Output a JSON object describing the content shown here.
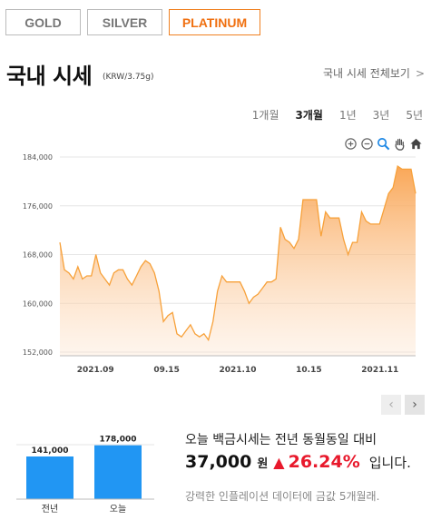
{
  "tabs": [
    {
      "label": "GOLD",
      "active": false
    },
    {
      "label": "SILVER",
      "active": false
    },
    {
      "label": "PLATINUM",
      "active": true
    }
  ],
  "header": {
    "title": "국내 시세",
    "unit": "(KRW/3.75g)",
    "view_all": "국내 시세 전체보기",
    "view_all_chevron": ">"
  },
  "periods": [
    {
      "label": "1개월",
      "active": false
    },
    {
      "label": "3개월",
      "active": true
    },
    {
      "label": "1년",
      "active": false
    },
    {
      "label": "3년",
      "active": false
    },
    {
      "label": "5년",
      "active": false
    }
  ],
  "toolbar": [
    "zoom-in-icon",
    "zoom-out-icon",
    "magnifier-icon",
    "hand-pan-icon",
    "home-icon"
  ],
  "pager": {
    "prev": "‹",
    "next": "›"
  },
  "colors": {
    "accent": "#f08020",
    "line": "#f7a13a",
    "fill_top": "#f9a24e",
    "bar": "#2196f3",
    "up": "#e8192c"
  },
  "chart_data": {
    "type": "area",
    "title": "",
    "xlabel": "",
    "ylabel": "",
    "ylim": [
      150000,
      186000
    ],
    "yticks": [
      "184,000",
      "176,000",
      "168,000",
      "160,000",
      "152,000"
    ],
    "ytick_values": [
      184000,
      176000,
      168000,
      160000,
      152000
    ],
    "xticks": [
      "2021.09",
      "09.15",
      "2021.10",
      "10.15",
      "2021.11"
    ],
    "xtick_positions": [
      5,
      15,
      25,
      35,
      45
    ],
    "grid": true,
    "series": [
      {
        "values": [
          170000,
          165500,
          165000,
          164000,
          166000,
          164000,
          164500,
          164500,
          168000,
          165000,
          164000,
          163000,
          165000,
          165500,
          165500,
          164000,
          163000,
          164500,
          166000,
          167000,
          166500,
          165000,
          162000,
          157000,
          158000,
          158500,
          155000,
          154500,
          155500,
          156500,
          155000,
          154500,
          155000,
          154000,
          157000,
          162000,
          164500,
          163500,
          163500,
          163500,
          163500,
          162000,
          160000,
          161000,
          161500,
          162500,
          163500,
          163500,
          164000,
          172500,
          170500,
          170000,
          169000,
          170500,
          177000,
          177000,
          177000,
          177000,
          171000,
          175000,
          174000,
          174000,
          174000,
          170500,
          168000,
          170000,
          170000,
          175000,
          173500,
          173000,
          173000,
          173000,
          175500,
          178000,
          179000,
          182500,
          182000,
          182000,
          182000,
          178000
        ]
      }
    ]
  },
  "comparison": {
    "bars": [
      {
        "label": "전년",
        "value": 141000,
        "value_label": "141,000"
      },
      {
        "label": "오늘",
        "value": 178000,
        "value_label": "178,000"
      }
    ],
    "line1": "오늘 백금시세는 전년 동월동일 대비",
    "amount": "37,000",
    "won": "원",
    "arrow": "▲",
    "pct": "26.24%",
    "suffix": "입니다.",
    "note": "강력한 인플레이션 데이터에 금값 5개월래."
  }
}
